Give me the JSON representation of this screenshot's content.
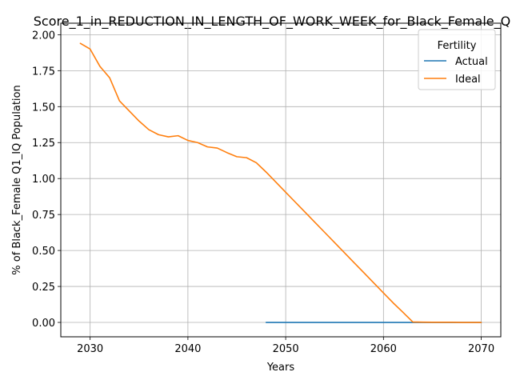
{
  "chart_data": {
    "type": "line",
    "title": "Score_1_in_REDUCTION_IN_LENGTH_OF_WORK_WEEK_for_Black_Female_Q",
    "xlabel": "Years",
    "ylabel": "% of Black_Female Q1_IQ Population",
    "xlim": [
      2027,
      2072
    ],
    "ylim": [
      -0.1,
      2.08
    ],
    "xticks": [
      2030,
      2040,
      2050,
      2060,
      2070
    ],
    "yticks": [
      0.0,
      0.25,
      0.5,
      0.75,
      1.0,
      1.25,
      1.5,
      1.75,
      2.0
    ],
    "ytick_labels": [
      "0.00",
      "0.25",
      "0.50",
      "0.75",
      "1.00",
      "1.25",
      "1.50",
      "1.75",
      "2.00"
    ],
    "grid": true,
    "legend": {
      "title": "Fertility",
      "position": "top-right"
    },
    "series": [
      {
        "name": "Actual",
        "color": "#1f77b4",
        "x": [
          2048,
          2049,
          2050,
          2051,
          2052,
          2053,
          2054,
          2055,
          2056,
          2057,
          2058,
          2059,
          2060,
          2061,
          2062,
          2063,
          2064,
          2065,
          2066,
          2067,
          2068,
          2069,
          2070
        ],
        "y": [
          0,
          0,
          0,
          0,
          0,
          0,
          0,
          0,
          0,
          0,
          0,
          0,
          0,
          0,
          0,
          0,
          0,
          0,
          0,
          0,
          0,
          0,
          0
        ]
      },
      {
        "name": "Ideal",
        "color": "#ff7f0e",
        "x": [
          2029,
          2030,
          2031,
          2032,
          2033,
          2034,
          2035,
          2036,
          2037,
          2038,
          2039,
          2040,
          2041,
          2042,
          2043,
          2044,
          2045,
          2046,
          2047,
          2048,
          2049,
          2050,
          2051,
          2052,
          2053,
          2054,
          2055,
          2056,
          2057,
          2058,
          2059,
          2060,
          2061,
          2062,
          2063,
          2064,
          2065,
          2066,
          2067,
          2068,
          2069,
          2070
        ],
        "y": [
          1.94,
          1.9,
          1.78,
          1.7,
          1.54,
          1.47,
          1.4,
          1.34,
          1.305,
          1.29,
          1.298,
          1.265,
          1.25,
          1.22,
          1.212,
          1.18,
          1.152,
          1.145,
          1.11,
          1.045,
          0.975,
          0.905,
          0.835,
          0.765,
          0.695,
          0.625,
          0.555,
          0.485,
          0.415,
          0.345,
          0.275,
          0.205,
          0.135,
          0.07,
          0.003,
          0.002,
          0.001,
          0.001,
          0.001,
          0.0,
          0.0,
          0.0
        ]
      }
    ]
  }
}
